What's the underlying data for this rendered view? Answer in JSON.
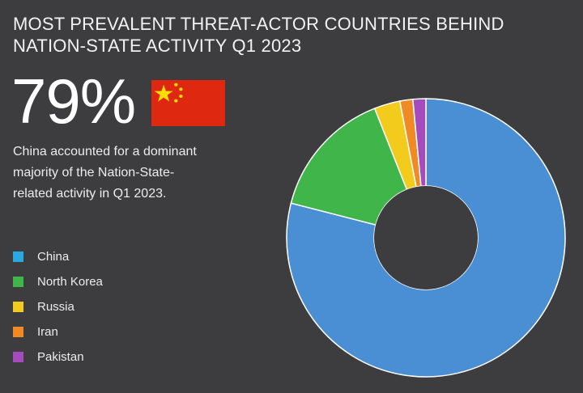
{
  "title_line1": "MOST PREVALENT THREAT-ACTOR COUNTRIES BEHIND",
  "title_line2": "NATION-STATE ACTIVITY Q1 2023",
  "headline_value": "79%",
  "description_line1": "China accounted for a dominant",
  "description_line2": "majority of the Nation-State-",
  "description_line3": "related activity in Q1 2023.",
  "colors": {
    "background": "#3d3d3f",
    "china": "#4a8fd4",
    "north_korea": "#3fb54a",
    "russia": "#f2cb1c",
    "iran": "#f08a24",
    "pakistan": "#a64bbd",
    "flag_red": "#de2910",
    "flag_yellow": "#ffde00"
  },
  "legend": [
    {
      "label": "China",
      "color": "#2aa9e0"
    },
    {
      "label": "North Korea",
      "color": "#3fb54a"
    },
    {
      "label": "Russia",
      "color": "#f2cb1c"
    },
    {
      "label": "Iran",
      "color": "#f08a24"
    },
    {
      "label": "Pakistan",
      "color": "#a64bbd"
    }
  ],
  "chart_data": {
    "type": "pie",
    "variant": "donut",
    "categories": [
      "China",
      "North Korea",
      "Russia",
      "Iran",
      "Pakistan"
    ],
    "values": [
      79,
      15,
      3,
      1.5,
      1.5
    ],
    "unit": "%",
    "start_angle_deg": 0,
    "direction": "clockwise",
    "legend_position": "left"
  }
}
